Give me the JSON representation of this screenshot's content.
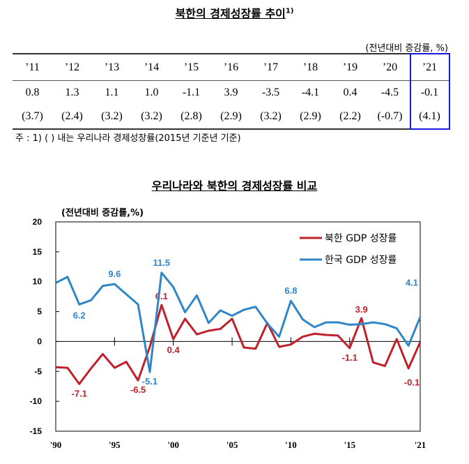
{
  "table": {
    "title": "북한의 경제성장률 추이",
    "title_note": "1)",
    "unit": "(전년대비 증감률, %)",
    "years": [
      "’11",
      "’12",
      "’13",
      "’14",
      "’15",
      "’16",
      "’17",
      "’18",
      "’19",
      "’20",
      "’21"
    ],
    "north": [
      "0.8",
      "1.3",
      "1.1",
      "1.0",
      "-1.1",
      "3.9",
      "-3.5",
      "-4.1",
      "0.4",
      "-4.5",
      "-0.1"
    ],
    "south": [
      "(3.7)",
      "(2.4)",
      "(3.2)",
      "(3.2)",
      "(2.8)",
      "(2.9)",
      "(3.2)",
      "(2.9)",
      "(2.2)",
      "(-0.7)",
      "(4.1)"
    ],
    "note": "주 : 1) (   ) 내는 우리나라 경제성장률(2015년 기준년 기준)",
    "highlight_color": "#1a1adc"
  },
  "chart_data": {
    "type": "line",
    "title": "우리나라와 북한의 경제성장률 비교",
    "ylabel": "(전년대비 증감률,%)",
    "ylim": [
      -15,
      20
    ],
    "yticks": [
      20,
      15,
      10,
      5,
      0,
      -5,
      -10,
      -15
    ],
    "x": [
      1990,
      1991,
      1992,
      1993,
      1994,
      1995,
      1996,
      1997,
      1998,
      1999,
      2000,
      2001,
      2002,
      2003,
      2004,
      2005,
      2006,
      2007,
      2008,
      2009,
      2010,
      2011,
      2012,
      2013,
      2014,
      2015,
      2016,
      2017,
      2018,
      2019,
      2020,
      2021
    ],
    "xticks": [
      {
        "year": 1990,
        "label": "'90"
      },
      {
        "year": 1995,
        "label": "'95"
      },
      {
        "year": 2000,
        "label": "'00"
      },
      {
        "year": 2005,
        "label": "'05"
      },
      {
        "year": 2010,
        "label": "'10"
      },
      {
        "year": 2015,
        "label": "'15"
      },
      {
        "year": 2021,
        "label": "'21"
      }
    ],
    "legend": "top-right",
    "series": [
      {
        "name": "북한 GDP 성장률",
        "color": "#c0202a",
        "values": [
          -4.3,
          -4.4,
          -7.1,
          -4.5,
          -2.1,
          -4.4,
          -3.4,
          -6.5,
          -0.9,
          6.1,
          0.4,
          3.8,
          1.2,
          1.8,
          2.1,
          3.8,
          -1.0,
          -1.2,
          3.1,
          -0.9,
          -0.5,
          0.8,
          1.3,
          1.1,
          1.0,
          -1.1,
          3.9,
          -3.5,
          -4.1,
          0.4,
          -4.5,
          -0.1
        ],
        "labels": [
          {
            "year": 1992,
            "text": "-7.1"
          },
          {
            "year": 1997,
            "text": "-6.5"
          },
          {
            "year": 1999,
            "text": "6.1"
          },
          {
            "year": 2000,
            "text": "0.4"
          },
          {
            "year": 2015,
            "text": "-1.1"
          },
          {
            "year": 2016,
            "text": "3.9"
          },
          {
            "year": 2021,
            "text": "-0.1"
          }
        ]
      },
      {
        "name": "한국 GDP 성장률",
        "color": "#2e86c8",
        "values": [
          9.8,
          10.8,
          6.2,
          6.9,
          9.3,
          9.6,
          7.9,
          6.2,
          -5.1,
          11.5,
          9.1,
          4.9,
          7.7,
          3.1,
          5.2,
          4.3,
          5.3,
          5.8,
          3.0,
          0.8,
          6.8,
          3.7,
          2.4,
          3.2,
          3.2,
          2.8,
          2.9,
          3.2,
          2.9,
          2.2,
          -0.7,
          4.1
        ],
        "labels": [
          {
            "year": 1992,
            "text": "6.2"
          },
          {
            "year": 1995,
            "text": "9.6"
          },
          {
            "year": 1998,
            "text": "-5.1"
          },
          {
            "year": 1999,
            "text": "11.5"
          },
          {
            "year": 2010,
            "text": "6.8"
          },
          {
            "year": 2021,
            "text": "4.1"
          }
        ]
      }
    ]
  }
}
